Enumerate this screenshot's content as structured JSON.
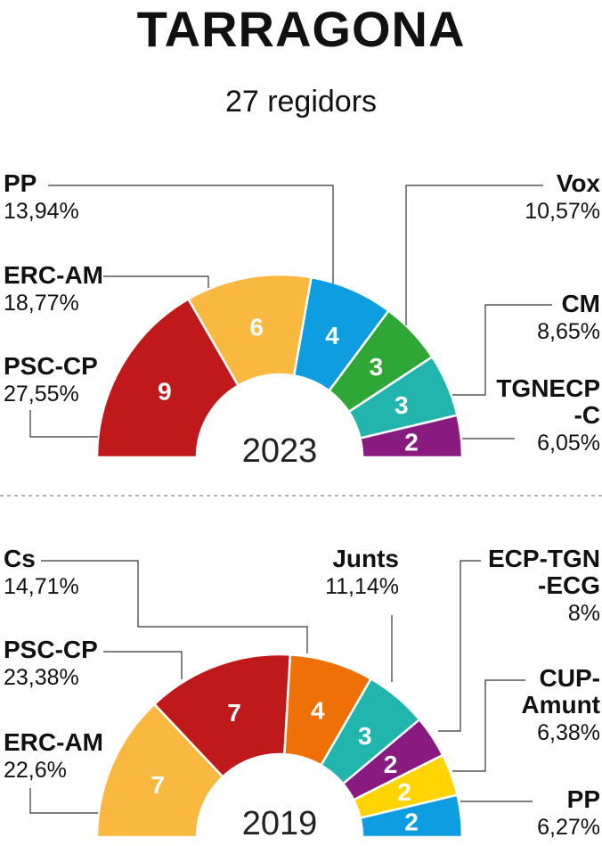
{
  "title": "TARRAGONA",
  "subtitle": "27 regidors",
  "chart_data": [
    {
      "type": "pie",
      "year_label": "2023",
      "total_seats": 27,
      "slices": [
        {
          "party": [
            "PSC-CP"
          ],
          "pct": "27,55%",
          "seats": 9,
          "color": "#c0191b"
        },
        {
          "party": [
            "ERC-AM"
          ],
          "pct": "18,77%",
          "seats": 6,
          "color": "#f9b840"
        },
        {
          "party": [
            "PP"
          ],
          "pct": "13,94%",
          "seats": 4,
          "color": "#0d9de0"
        },
        {
          "party": [
            "Vox"
          ],
          "pct": "10,57%",
          "seats": 3,
          "color": "#2ea736"
        },
        {
          "party": [
            "TGNECP",
            "-C"
          ],
          "pct": "6,05%",
          "seats": 3,
          "color": "#21b5ad"
        },
        {
          "party": [
            "CM"
          ],
          "pct": "8,65%",
          "seats": 2,
          "color": "#881a80"
        }
      ]
    },
    {
      "type": "pie",
      "year_label": "2019",
      "total_seats": 27,
      "slices": [
        {
          "party": [
            "ERC-AM"
          ],
          "pct": "22,6%",
          "seats": 7,
          "color": "#f9b840"
        },
        {
          "party": [
            "PSC-CP"
          ],
          "pct": "23,38%",
          "seats": 7,
          "color": "#c0191b"
        },
        {
          "party": [
            "Cs"
          ],
          "pct": "14,71%",
          "seats": 4,
          "color": "#ee7006"
        },
        {
          "party": [
            "Junts"
          ],
          "pct": "11,14%",
          "seats": 3,
          "color": "#21b5ad"
        },
        {
          "party": [
            "ECP-TGN",
            "-ECG"
          ],
          "pct": "8%",
          "seats": 2,
          "color": "#881a80"
        },
        {
          "party": [
            "CUP-",
            "Amunt"
          ],
          "pct": "6,38%",
          "seats": 2,
          "color": "#ffd400"
        },
        {
          "party": [
            "PP"
          ],
          "pct": "6,27%",
          "seats": 2,
          "color": "#0d9de0"
        }
      ]
    }
  ]
}
